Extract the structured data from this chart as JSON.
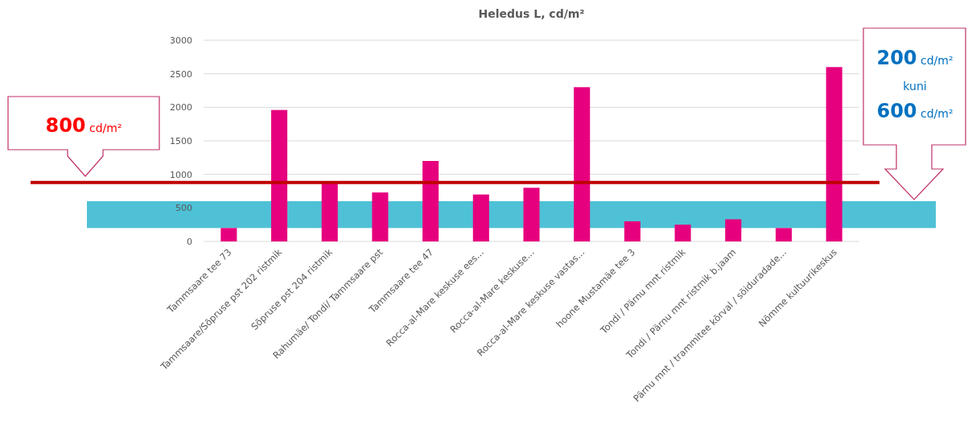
{
  "chart_data": {
    "type": "bar",
    "title": "Heledus L, cd/m²",
    "categories": [
      "Tammsaare tee 73",
      "Tammsaare/Sõpruse pst 202 ristmik",
      "Sõpruse pst  204 ristmik",
      "Rahumäe/ Tondi/ Tammsaare pst",
      "Tammsaare tee 47",
      "Rocca-al-Mare keskuse ees...",
      "Rocca-al-Mare keskuse...",
      "Rocca-al-Mare keskuse vastas...",
      "hoone Mustamäe tee 3",
      "Tondi / Pärnu mnt ristmik",
      "Tondi / Pärnu mnt ristmik b.jaam",
      "Pärnu mnt / trammitee kõrval / sõiduradade...",
      "Nõmme kultuurikeskus"
    ],
    "values": [
      200,
      1960,
      880,
      730,
      1200,
      700,
      800,
      2300,
      300,
      250,
      330,
      200,
      2600
    ],
    "color": "#e6007e",
    "ylim": [
      0,
      3000
    ],
    "yticks": [
      0,
      500,
      1000,
      1500,
      2000,
      2500,
      3000
    ],
    "grid": "y",
    "ref_lines": [
      {
        "axis": "y",
        "value": 880,
        "color": "#c00000"
      }
    ],
    "bands": [
      {
        "axis": "y",
        "from": 200,
        "to": 600,
        "color": "#4fc1d6"
      }
    ],
    "annotations": [
      "800 cd/m²",
      "200 cd/m²",
      "kuni",
      "600 cd/m²"
    ]
  }
}
